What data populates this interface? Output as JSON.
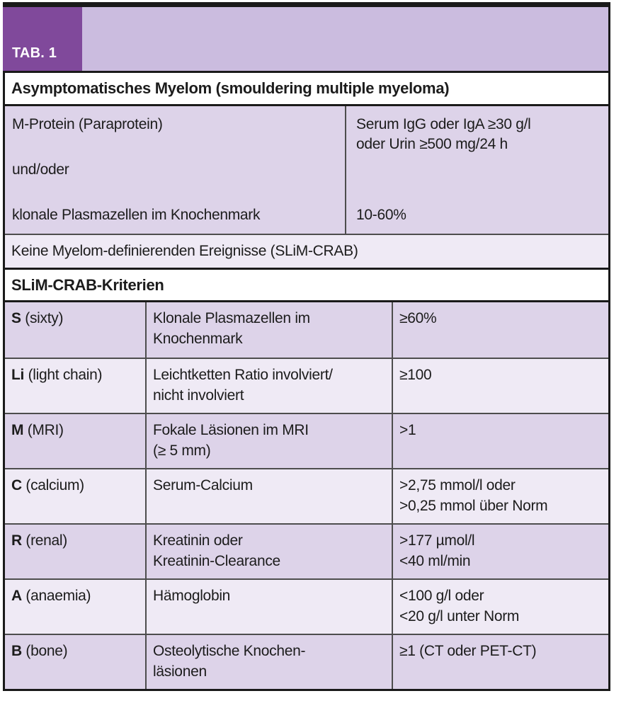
{
  "tab_badge": {
    "label": "TAB. 1"
  },
  "table": {
    "title": "Asymptomatisches Myelom (smouldering multiple myeloma)",
    "mprotein_row": {
      "left_line_1": "M-Protein (Paraprotein)",
      "left_line_2": "und/oder",
      "left_line_3": "klonale Plasmazellen im Knochenmark",
      "right_top": "Serum IgG oder IgA ≥30 g/l\noder Urin ≥500 mg/24 h",
      "right_bottom": "10-60%"
    },
    "exclusion_row": "Keine Myelom-definierenden Ereignisse (SLiM-CRAB)",
    "criteria_header": "SLiM-CRAB-Kriterien",
    "criteria": [
      {
        "key": "S",
        "key_suffix": " (sixty)",
        "description": "Klonale Plasmazellen im\nKnochenmark",
        "value": "≥60%"
      },
      {
        "key": "Li",
        "key_suffix": " (light chain)",
        "description": "Leichtketten Ratio involviert/\nnicht involviert",
        "value": "≥100"
      },
      {
        "key": "M",
        "key_suffix": " (MRI)",
        "description": "Fokale Läsionen im MRI\n(≥ 5 mm)",
        "value": ">1"
      },
      {
        "key": "C",
        "key_suffix": " (calcium)",
        "description": "Serum-Calcium",
        "value": ">2,75 mmol/l oder\n>0,25 mmol über Norm"
      },
      {
        "key": "R",
        "key_suffix": " (renal)",
        "description": "Kreatinin oder\nKreatinin-Clearance",
        "value": ">177 µmol/l\n<40 ml/min"
      },
      {
        "key": "A",
        "key_suffix": " (anaemia)",
        "description": "Hämoglobin",
        "value": "<100 g/l oder\n<20 g/l unter Norm"
      },
      {
        "key": "B",
        "key_suffix": " (bone)",
        "description": "Osteolytische Knochen-\nläsionen",
        "value": "≥1 (CT oder PET-CT)"
      }
    ]
  },
  "colors": {
    "tab_badge_bg": "#80499b",
    "banner_bg": "#cbbcdf",
    "row_purple": "#ddd3e9",
    "row_light": "#efeaf5",
    "border_black": "#1a1a1a",
    "border_gray": "#4d4d4d",
    "text": "#1c1c1c"
  }
}
